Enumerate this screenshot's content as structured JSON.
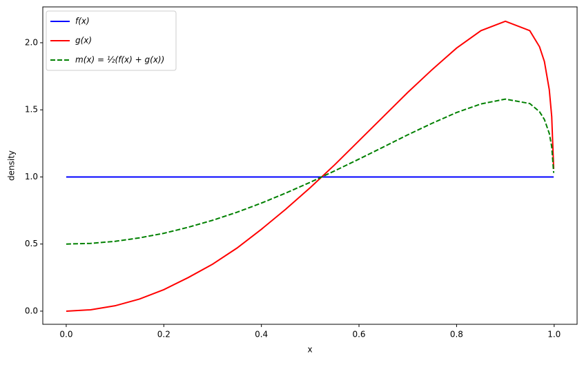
{
  "chart_data": {
    "type": "line",
    "x_label": "x",
    "y_label": "density",
    "x": [
      0,
      0.05,
      0.1,
      0.15,
      0.2,
      0.25,
      0.3,
      0.35,
      0.4,
      0.45,
      0.5,
      0.55,
      0.6,
      0.65,
      0.7,
      0.75,
      0.8,
      0.85,
      0.9,
      0.95,
      0.97,
      0.98,
      0.99,
      0.995,
      0.999
    ],
    "series": [
      {
        "name": "f(x)",
        "color": "#0000ff",
        "dash": false,
        "values": [
          1,
          1,
          1,
          1,
          1,
          1,
          1,
          1,
          1,
          1,
          1,
          1,
          1,
          1,
          1,
          1,
          1,
          1,
          1,
          1,
          1,
          1,
          1,
          1,
          1
        ]
      },
      {
        "name": "g(x)",
        "color": "#ff0000",
        "dash": false,
        "values": [
          0,
          0.01,
          0.04,
          0.09,
          0.16,
          0.25,
          0.35,
          0.47,
          0.61,
          0.76,
          0.92,
          1.09,
          1.27,
          1.45,
          1.63,
          1.8,
          1.96,
          2.09,
          2.16,
          2.09,
          1.97,
          1.86,
          1.65,
          1.45,
          1.06
        ]
      },
      {
        "name": "m(x) = ½(f(x) + g(x))",
        "color": "#008000",
        "dash": true,
        "values": [
          0.5,
          0.505,
          0.52,
          0.546,
          0.58,
          0.625,
          0.677,
          0.737,
          0.805,
          0.88,
          0.96,
          1.045,
          1.133,
          1.223,
          1.314,
          1.4,
          1.48,
          1.544,
          1.58,
          1.547,
          1.486,
          1.428,
          1.324,
          1.225,
          1.03
        ]
      }
    ],
    "xlim": [
      -0.048,
      1.047
    ],
    "ylim": [
      -0.098,
      2.267
    ],
    "xticks": [
      {
        "value": 0,
        "label": "0.0"
      },
      {
        "value": 0.2,
        "label": "0.2"
      },
      {
        "value": 0.4,
        "label": "0.4"
      },
      {
        "value": 0.6,
        "label": "0.6"
      },
      {
        "value": 0.8,
        "label": "0.8"
      },
      {
        "value": 1,
        "label": "1.0"
      }
    ],
    "yticks": [
      {
        "value": 0,
        "label": "0.0"
      },
      {
        "value": 0.5,
        "label": "0.5"
      },
      {
        "value": 1,
        "label": "1.0"
      },
      {
        "value": 1.5,
        "label": "1.5"
      },
      {
        "value": 2,
        "label": "2.0"
      }
    ],
    "grid": false,
    "legend": "upper left"
  }
}
